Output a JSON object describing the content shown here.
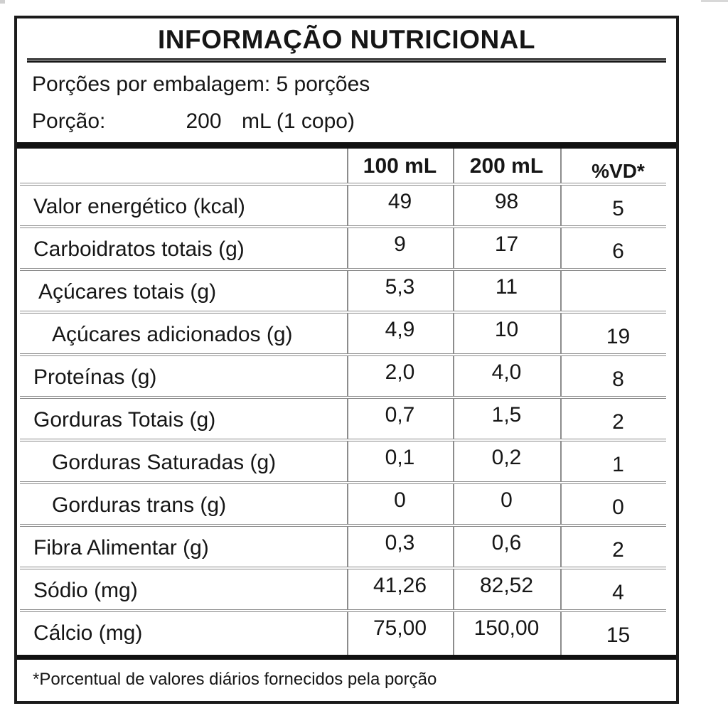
{
  "colors": {
    "outer_border": "#1b1b1b",
    "grid_line": "#8c8c8c",
    "text": "#161616",
    "background": "#ffffff"
  },
  "label": {
    "title": "INFORMAÇÃO NUTRICIONAL",
    "servings_line": "Porções por embalagem: 5 porções",
    "serving": {
      "label": "Porção:",
      "value": "200",
      "unit": "mL (1 copo)"
    },
    "footnote": "*Porcentual de valores diários fornecidos pela porção"
  },
  "table": {
    "columns": [
      "",
      "100 mL",
      "200 mL",
      "%VD*"
    ],
    "rows": [
      {
        "label": "Valor energético (kcal)",
        "per100": "49",
        "per200": "98",
        "vd": "5"
      },
      {
        "label": "Carboidratos totais (g)",
        "per100": "9",
        "per200": "17",
        "vd": "6"
      },
      {
        "label": "Açúcares totais (g)",
        "per100": "5,3",
        "per200": "11",
        "vd": ""
      },
      {
        "label": "Açúcares adicionados (g)",
        "per100": "4,9",
        "per200": "10",
        "vd": "19"
      },
      {
        "label": "Proteínas (g)",
        "per100": "2,0",
        "per200": "4,0",
        "vd": "8"
      },
      {
        "label": "Gorduras Totais (g)",
        "per100": "0,7",
        "per200": "1,5",
        "vd": "2"
      },
      {
        "label": "Gorduras Saturadas (g)",
        "per100": "0,1",
        "per200": "0,2",
        "vd": "1"
      },
      {
        "label": "Gorduras trans (g)",
        "per100": "0",
        "per200": "0",
        "vd": "0"
      },
      {
        "label": "Fibra Alimentar (g)",
        "per100": "0,3",
        "per200": "0,6",
        "vd": "2"
      },
      {
        "label": "Sódio (mg)",
        "per100": "41,26",
        "per200": "82,52",
        "vd": "4"
      },
      {
        "label": "Cálcio (mg)",
        "per100": "75,00",
        "per200": "150,00",
        "vd": "15"
      }
    ]
  }
}
